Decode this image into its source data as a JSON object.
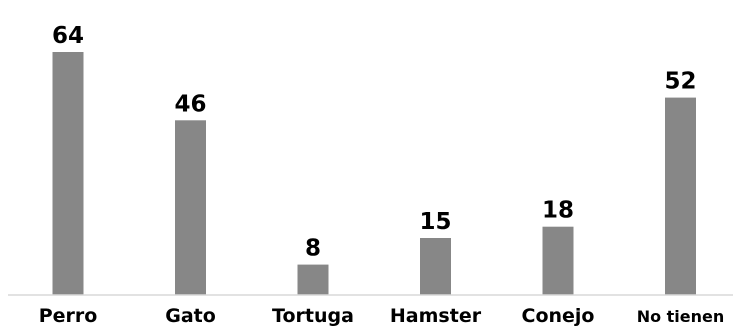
{
  "chart_data": {
    "type": "bar",
    "categories": [
      "Perro",
      "Gato",
      "Tortuga",
      "Hamster",
      "Conejo",
      "No tienen"
    ],
    "values": [
      64,
      46,
      8,
      15,
      18,
      52
    ],
    "title": "",
    "xlabel": "",
    "ylabel": "",
    "ylim": [
      0,
      64
    ],
    "grid": false,
    "legend": "none",
    "bar_color": "#878787",
    "axis_color": "#d9d9d9",
    "text_color": "#000000"
  }
}
